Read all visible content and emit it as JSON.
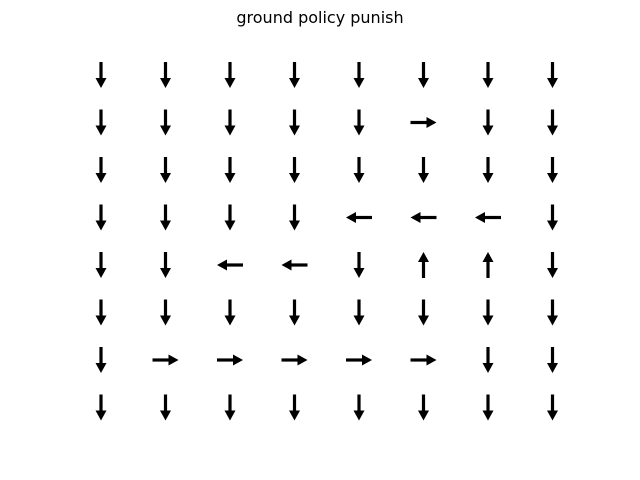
{
  "figure": {
    "title": "ground policy punish"
  },
  "chart_data": {
    "type": "quiver",
    "title": "ground policy punish",
    "xlabel": "",
    "ylabel": "",
    "axes_visible": false,
    "grid": false,
    "arrow_color": "#000000",
    "columns": 8,
    "rows": 8,
    "direction_encoding": "row 0 is the top row of the grid; each row lists the arrow direction for columns 0-7 from left to right",
    "directions": [
      [
        "down",
        "down",
        "down",
        "down",
        "down",
        "down",
        "down",
        "down"
      ],
      [
        "down",
        "down",
        "down",
        "down",
        "down",
        "right",
        "down",
        "down"
      ],
      [
        "down",
        "down",
        "down",
        "down",
        "down",
        "down",
        "down",
        "down"
      ],
      [
        "down",
        "down",
        "down",
        "down",
        "left",
        "left",
        "left",
        "down"
      ],
      [
        "down",
        "down",
        "left",
        "left",
        "down",
        "up",
        "up",
        "down"
      ],
      [
        "down",
        "down",
        "down",
        "down",
        "down",
        "down",
        "down",
        "down"
      ],
      [
        "down",
        "right",
        "right",
        "right",
        "right",
        "right",
        "down",
        "down"
      ],
      [
        "down",
        "down",
        "down",
        "down",
        "down",
        "down",
        "down",
        "down"
      ]
    ]
  }
}
